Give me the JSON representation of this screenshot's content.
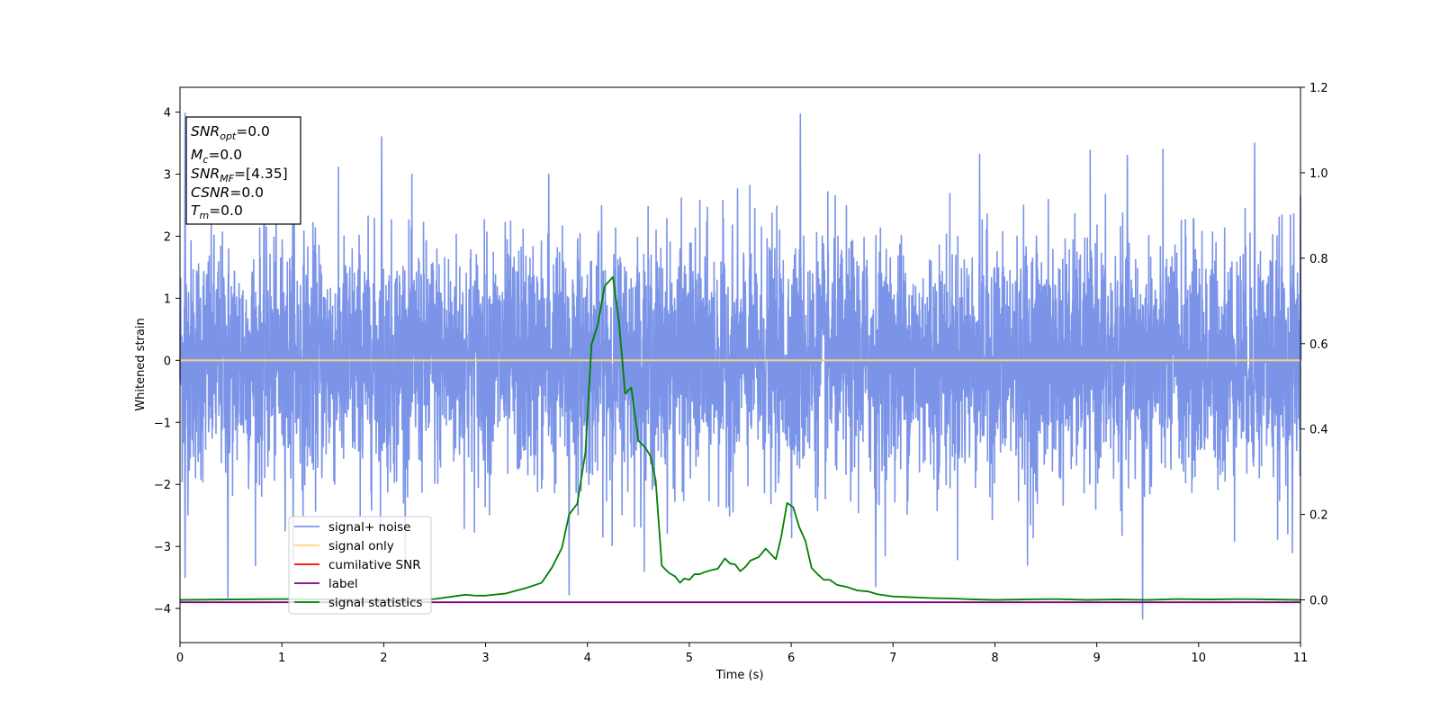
{
  "chart_data": {
    "type": "line",
    "xlabel": "Time (s)",
    "ylabel": "Whitened strain",
    "xlim": [
      0,
      11
    ],
    "ylim_left": [
      -4.55,
      4.4
    ],
    "ylim_right": [
      -0.1,
      1.2
    ],
    "x_ticks": [
      "0",
      "1",
      "2",
      "3",
      "4",
      "5",
      "6",
      "7",
      "8",
      "9",
      "10",
      "11"
    ],
    "y_ticks_left": [
      "−4",
      "−3",
      "−2",
      "−1",
      "0",
      "1",
      "2",
      "3",
      "4"
    ],
    "y_ticks_right": [
      "0.0",
      "0.2",
      "0.4",
      "0.6",
      "0.8",
      "1.0",
      "1.2"
    ],
    "grid": false,
    "legend_position": "lower-left",
    "legend": [
      {
        "label": "signal+ noise",
        "color": "#7b94e8"
      },
      {
        "label": "signal only",
        "color": "#ffd27f"
      },
      {
        "label": "cumilative SNR",
        "color": "#ff0000"
      },
      {
        "label": "label",
        "color": "#800080"
      },
      {
        "label": "signal statistics",
        "color": "#008000"
      }
    ],
    "info_box": {
      "lines": [
        {
          "sym": "SNR",
          "sub": "opt",
          "val": "=0.0"
        },
        {
          "sym": "M",
          "sub": "c",
          "val": "=0.0"
        },
        {
          "sym": "SNR",
          "sub": "MF",
          "val": "=[4.35]"
        },
        {
          "sym": "CSNR",
          "sub": "",
          "val": "=0.0"
        },
        {
          "sym": "T",
          "sub": "m",
          "val": "=0.0"
        }
      ]
    },
    "series": [
      {
        "name": "signal+ noise",
        "axis": "left",
        "color": "#7b94e8",
        "description_note": "dense noise, roughly within [-2.2, 2.2] with spikes up to ±4",
        "peaks": [
          {
            "x": 0.05,
            "y": 3.98
          },
          {
            "x": 1.12,
            "y": 3.82
          },
          {
            "x": 1.98,
            "y": 3.6
          },
          {
            "x": 3.62,
            "y": 3.0
          },
          {
            "x": 6.09,
            "y": 3.97
          },
          {
            "x": 7.85,
            "y": 3.32
          },
          {
            "x": 9.3,
            "y": 3.3
          },
          {
            "x": 10.55,
            "y": 3.5
          },
          {
            "x": 11.0,
            "y": 2.65
          }
        ],
        "troughs": [
          {
            "x": 0.05,
            "y": -3.5
          },
          {
            "x": 0.47,
            "y": -3.82
          },
          {
            "x": 3.82,
            "y": -3.78
          },
          {
            "x": 6.83,
            "y": -3.65
          },
          {
            "x": 8.32,
            "y": -3.3
          },
          {
            "x": 9.45,
            "y": -4.17
          },
          {
            "x": 10.92,
            "y": -3.1
          }
        ]
      },
      {
        "name": "signal only",
        "axis": "left",
        "color": "#ffd27f",
        "x": [
          0,
          11
        ],
        "y": [
          0,
          0
        ]
      },
      {
        "name": "label",
        "axis": "left",
        "color": "#800080",
        "x": [
          0,
          11
        ],
        "y": [
          -3.9,
          -3.9
        ]
      },
      {
        "name": "signal statistics",
        "axis": "right",
        "color": "#008000",
        "x": [
          0,
          0.5,
          1.0,
          1.5,
          2.0,
          2.5,
          2.8,
          2.9,
          3.0,
          3.2,
          3.4,
          3.55,
          3.65,
          3.75,
          3.82,
          3.9,
          3.98,
          4.04,
          4.1,
          4.17,
          4.25,
          4.31,
          4.37,
          4.43,
          4.5,
          4.57,
          4.62,
          4.67,
          4.73,
          4.8,
          4.86,
          4.91,
          4.95,
          5.0,
          5.05,
          5.1,
          5.15,
          5.22,
          5.28,
          5.35,
          5.4,
          5.45,
          5.5,
          5.55,
          5.6,
          5.68,
          5.75,
          5.85,
          5.9,
          5.96,
          6.02,
          6.08,
          6.14,
          6.2,
          6.26,
          6.32,
          6.38,
          6.45,
          6.55,
          6.65,
          6.75,
          6.85,
          7.0,
          7.2,
          7.4,
          7.6,
          7.8,
          8.0,
          8.3,
          8.6,
          8.9,
          9.2,
          9.5,
          9.8,
          10.1,
          10.4,
          10.7,
          11.0
        ],
        "y": [
          0.0,
          0.001,
          0.002,
          0.001,
          0.0,
          0.002,
          0.012,
          0.01,
          0.01,
          0.015,
          0.028,
          0.04,
          0.075,
          0.122,
          0.2,
          0.225,
          0.345,
          0.598,
          0.643,
          0.735,
          0.756,
          0.65,
          0.483,
          0.497,
          0.373,
          0.356,
          0.336,
          0.279,
          0.08,
          0.063,
          0.055,
          0.04,
          0.05,
          0.047,
          0.06,
          0.06,
          0.065,
          0.07,
          0.073,
          0.097,
          0.085,
          0.083,
          0.067,
          0.077,
          0.092,
          0.1,
          0.12,
          0.095,
          0.145,
          0.227,
          0.217,
          0.17,
          0.138,
          0.075,
          0.06,
          0.047,
          0.047,
          0.035,
          0.03,
          0.022,
          0.02,
          0.013,
          0.008,
          0.006,
          0.004,
          0.003,
          0.001,
          0.0,
          0.001,
          0.002,
          0.0,
          0.001,
          0.0,
          0.002,
          0.001,
          0.002,
          0.001,
          0.0
        ]
      }
    ]
  }
}
